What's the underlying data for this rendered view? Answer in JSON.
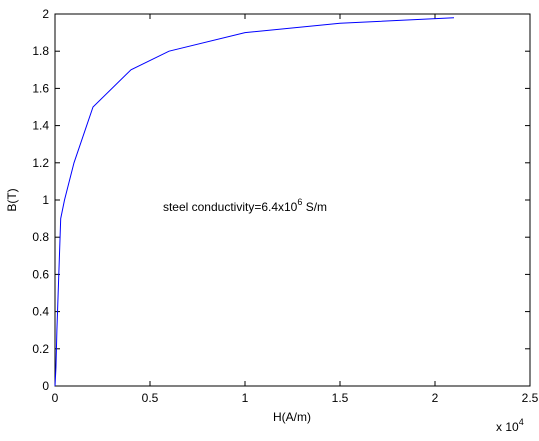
{
  "chart_data": {
    "type": "line",
    "title": "",
    "xlabel": "H(A/m)",
    "ylabel": "B(T)",
    "x_multiplier": "x 10",
    "x_multiplier_exponent": "4",
    "xlim": [
      0,
      25000
    ],
    "ylim": [
      0,
      2
    ],
    "x_ticks": [
      0,
      5000,
      10000,
      15000,
      20000,
      25000
    ],
    "x_tick_labels": [
      "0",
      "0.5",
      "1",
      "1.5",
      "2",
      "2.5"
    ],
    "y_ticks": [
      0,
      0.2,
      0.4,
      0.6,
      0.8,
      1.0,
      1.2,
      1.4,
      1.6,
      1.8,
      2.0
    ],
    "y_tick_labels": [
      "0",
      "0.2",
      "0.4",
      "0.6",
      "0.8",
      "1",
      "1.2",
      "1.4",
      "1.6",
      "1.8",
      "2"
    ],
    "grid": false,
    "series": [
      {
        "color": "#0000ff",
        "x": [
          0,
          50,
          100,
          200,
          300,
          500,
          1000,
          2000,
          4000,
          6000,
          10000,
          15000,
          21000
        ],
        "y": [
          0,
          0.1,
          0.3,
          0.6,
          0.9,
          1.0,
          1.2,
          1.5,
          1.7,
          1.8,
          1.9,
          1.95,
          1.98
        ]
      }
    ],
    "annotation": {
      "text_prefix": "steel conductivity=6.4x10",
      "superscript": "6",
      "text_suffix": " S/m",
      "x": 10000,
      "y": 0.94
    }
  }
}
